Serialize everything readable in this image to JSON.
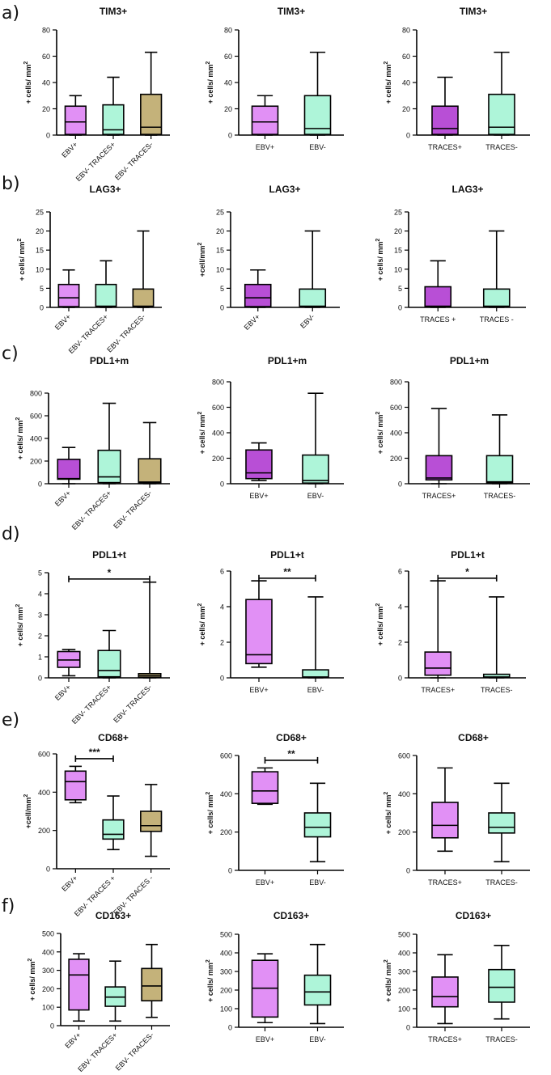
{
  "colors": {
    "purple": "#b84fd6",
    "light_purple": "#e190f5",
    "mint": "#aef5d9",
    "khaki": "#c4b27a",
    "line": "#000000"
  },
  "panels": [
    {
      "label": "a)",
      "charts": [
        {
          "type": "box",
          "title": "TIM3+",
          "ylabel": "+ cells/ mm²",
          "ylim": [
            0,
            80
          ],
          "yticks": [
            0,
            20,
            40,
            60,
            80
          ],
          "rotate": true,
          "categories": [
            "EBV+",
            "EBV- TRACES+",
            "EBV- TRACES-"
          ],
          "fills": [
            "light_purple",
            "mint",
            "khaki"
          ],
          "boxes": [
            {
              "min": 0,
              "q1": 0.5,
              "median": 10,
              "q3": 22,
              "max": 30
            },
            {
              "min": 0,
              "q1": 0.5,
              "median": 4,
              "q3": 23,
              "max": 44
            },
            {
              "min": 0,
              "q1": 0.5,
              "median": 6,
              "q3": 31,
              "max": 63
            }
          ]
        },
        {
          "type": "box",
          "title": "TIM3+",
          "ylabel": "+ cells/ mm²",
          "ylim": [
            0,
            80
          ],
          "yticks": [
            0,
            20,
            40,
            60,
            80
          ],
          "rotate": false,
          "categories": [
            "EBV+",
            "EBV-"
          ],
          "fills": [
            "light_purple",
            "mint"
          ],
          "boxes": [
            {
              "min": 0,
              "q1": 0.5,
              "median": 10,
              "q3": 22,
              "max": 30
            },
            {
              "min": 0,
              "q1": 0.5,
              "median": 5,
              "q3": 30,
              "max": 63
            }
          ]
        },
        {
          "type": "box",
          "title": "TIM3+",
          "ylabel": "+ cells/ mm²",
          "ylim": [
            0,
            80
          ],
          "yticks": [
            0,
            20,
            40,
            60,
            80
          ],
          "rotate": false,
          "categories": [
            "TRACES+",
            "TRACES-"
          ],
          "fills": [
            "purple",
            "mint"
          ],
          "boxes": [
            {
              "min": 0,
              "q1": 0.5,
              "median": 5,
              "q3": 22,
              "max": 44
            },
            {
              "min": 0,
              "q1": 0.5,
              "median": 6,
              "q3": 31,
              "max": 63
            }
          ]
        }
      ]
    },
    {
      "label": "b)",
      "charts": [
        {
          "type": "box",
          "title": "LAG3+",
          "ylabel": "+ cells/ mm²",
          "ylim": [
            0,
            25
          ],
          "yticks": [
            0,
            5,
            10,
            15,
            20,
            25
          ],
          "rotate": true,
          "categories": [
            "EBV+",
            "EBV- TRACES+",
            "EBV- TRACES-"
          ],
          "fills": [
            "light_purple",
            "mint",
            "khaki"
          ],
          "boxes": [
            {
              "min": 0,
              "q1": 0.2,
              "median": 2.5,
              "q3": 6,
              "max": 9.8
            },
            {
              "min": 0,
              "q1": 0.2,
              "median": 0.3,
              "q3": 6,
              "max": 12.2
            },
            {
              "min": 0,
              "q1": 0.2,
              "median": 0.3,
              "q3": 4.8,
              "max": 20
            }
          ]
        },
        {
          "type": "box",
          "title": "LAG3+",
          "ylabel": "+cell/mm²",
          "ylim": [
            0,
            25
          ],
          "yticks": [
            0,
            5,
            10,
            15,
            20,
            25
          ],
          "rotate": true,
          "categories": [
            "EBV+",
            "EBV-"
          ],
          "fills": [
            "purple",
            "mint"
          ],
          "boxes": [
            {
              "min": 0,
              "q1": 0.2,
              "median": 2.5,
              "q3": 6,
              "max": 9.8
            },
            {
              "min": 0,
              "q1": 0.2,
              "median": 0.3,
              "q3": 4.8,
              "max": 20
            }
          ]
        },
        {
          "type": "box",
          "title": "LAG3+",
          "ylabel": "+ cells/ mm²",
          "ylim": [
            0,
            25
          ],
          "yticks": [
            0,
            5,
            10,
            15,
            20,
            25
          ],
          "rotate": false,
          "categories": [
            "TRACES +",
            "TRACES -"
          ],
          "fills": [
            "purple",
            "mint"
          ],
          "boxes": [
            {
              "min": 0,
              "q1": 0.2,
              "median": 0.3,
              "q3": 5.4,
              "max": 12.2
            },
            {
              "min": 0,
              "q1": 0.2,
              "median": 0.3,
              "q3": 4.8,
              "max": 20
            }
          ]
        }
      ]
    },
    {
      "label": "c)",
      "charts": [
        {
          "type": "box",
          "title": "PDL1+m",
          "ylabel": "+ cells/ mm²",
          "ylim": [
            0,
            800
          ],
          "yticks": [
            0,
            200,
            400,
            600,
            800
          ],
          "rotate": true,
          "categories": [
            "EBV+",
            "EBV- TRACES+",
            "EBV- TRACES-"
          ],
          "fills": [
            "purple",
            "mint",
            "khaki"
          ],
          "boxes": [
            {
              "min": 0,
              "q1": 40,
              "median": 45,
              "q3": 215,
              "max": 320
            },
            {
              "min": 0,
              "q1": 10,
              "median": 60,
              "q3": 295,
              "max": 710
            },
            {
              "min": 0,
              "q1": 5,
              "median": 15,
              "q3": 220,
              "max": 540
            }
          ]
        },
        {
          "type": "box",
          "title": "PDL1+m",
          "ylabel": "+ cells/ mm²",
          "ylim": [
            0,
            800
          ],
          "yticks": [
            0,
            200,
            400,
            600,
            800
          ],
          "rotate": false,
          "categories": [
            "EBV+",
            "EBV-"
          ],
          "fills": [
            "purple",
            "mint"
          ],
          "boxes": [
            {
              "min": 25,
              "q1": 40,
              "median": 85,
              "q3": 265,
              "max": 320
            },
            {
              "min": 0,
              "q1": 5,
              "median": 25,
              "q3": 225,
              "max": 710
            }
          ]
        },
        {
          "type": "box",
          "title": "PDL1+m",
          "ylabel": "+ cells/ mm²",
          "ylim": [
            0,
            800
          ],
          "yticks": [
            0,
            200,
            400,
            600,
            800
          ],
          "rotate": false,
          "categories": [
            "TRACES+",
            "TRACES-"
          ],
          "fills": [
            "purple",
            "mint"
          ],
          "boxes": [
            {
              "min": 0,
              "q1": 30,
              "median": 45,
              "q3": 220,
              "max": 590
            },
            {
              "min": 0,
              "q1": 5,
              "median": 15,
              "q3": 220,
              "max": 540
            }
          ]
        }
      ]
    },
    {
      "label": "d)",
      "charts": [
        {
          "type": "box",
          "title": "PDL1+t",
          "ylabel": "+ cells/ mm²",
          "ylim": [
            0,
            5
          ],
          "yticks": [
            0,
            1,
            2,
            3,
            4,
            5
          ],
          "rotate": true,
          "categories": [
            "EBV+",
            "EBV- TRACES+",
            "EBV- TRACES-"
          ],
          "fills": [
            "light_purple",
            "mint",
            "khaki"
          ],
          "boxes": [
            {
              "min": 0.1,
              "q1": 0.5,
              "median": 0.85,
              "q3": 1.25,
              "max": 1.35
            },
            {
              "min": 0,
              "q1": 0.05,
              "median": 0.35,
              "q3": 1.3,
              "max": 2.25
            },
            {
              "min": 0,
              "q1": 0.02,
              "median": 0.1,
              "q3": 0.2,
              "max": 4.55
            }
          ],
          "sig": {
            "from": 0,
            "to": 2,
            "y": 4.7,
            "label": "*"
          }
        },
        {
          "type": "box",
          "title": "PDL1+t",
          "ylabel": "+ cells/ mm²",
          "ylim": [
            0,
            6
          ],
          "yticks": [
            0,
            2,
            4,
            6
          ],
          "rotate": false,
          "categories": [
            "EBV+",
            "EBV-"
          ],
          "fills": [
            "light_purple",
            "mint"
          ],
          "boxes": [
            {
              "min": 0.6,
              "q1": 0.8,
              "median": 1.3,
              "q3": 4.4,
              "max": 5.45
            },
            {
              "min": 0,
              "q1": 0.02,
              "median": 0.05,
              "q3": 0.45,
              "max": 4.55
            }
          ],
          "sig": {
            "from": 0,
            "to": 1,
            "y": 5.6,
            "label": "**"
          }
        },
        {
          "type": "box",
          "title": "PDL1+t",
          "ylabel": "+ cells/ mm²",
          "ylim": [
            0,
            6
          ],
          "yticks": [
            0,
            2,
            4,
            6
          ],
          "rotate": false,
          "categories": [
            "TRACES+",
            "TRACES-"
          ],
          "fills": [
            "light_purple",
            "mint"
          ],
          "boxes": [
            {
              "min": 0,
              "q1": 0.15,
              "median": 0.55,
              "q3": 1.45,
              "max": 5.45
            },
            {
              "min": 0,
              "q1": 0.02,
              "median": 0.05,
              "q3": 0.2,
              "max": 4.55
            }
          ],
          "sig": {
            "from": 0,
            "to": 1,
            "y": 5.6,
            "label": "*"
          }
        }
      ]
    },
    {
      "label": "e)",
      "charts": [
        {
          "type": "box",
          "title": "CD68+",
          "ylabel": "+cell/mm²",
          "ylim": [
            0,
            600
          ],
          "yticks": [
            0,
            200,
            400,
            600
          ],
          "rotate": true,
          "categories": [
            "EBV+",
            "EBV- TRACES +",
            "EBV- TRACES -"
          ],
          "fills": [
            "light_purple",
            "mint",
            "khaki"
          ],
          "boxes": [
            {
              "min": 345,
              "q1": 360,
              "median": 455,
              "q3": 510,
              "max": 535
            },
            {
              "min": 100,
              "q1": 155,
              "median": 180,
              "q3": 255,
              "max": 380
            },
            {
              "min": 65,
              "q1": 195,
              "median": 225,
              "q3": 300,
              "max": 440
            }
          ],
          "sig": {
            "from": 0,
            "to": 1,
            "y": 575,
            "label": "***"
          }
        },
        {
          "type": "box",
          "title": "CD68+",
          "ylabel": "+ cells/ mm²",
          "ylim": [
            0,
            600
          ],
          "yticks": [
            0,
            200,
            400,
            600
          ],
          "rotate": false,
          "categories": [
            "EBV+",
            "EBV-"
          ],
          "fills": [
            "light_purple",
            "mint"
          ],
          "boxes": [
            {
              "min": 345,
              "q1": 350,
              "median": 415,
              "q3": 515,
              "max": 535
            },
            {
              "min": 45,
              "q1": 175,
              "median": 225,
              "q3": 300,
              "max": 455
            }
          ],
          "sig": {
            "from": 0,
            "to": 1,
            "y": 575,
            "label": "**"
          }
        },
        {
          "type": "box",
          "title": "CD68+",
          "ylabel": "+ cells/ mm²",
          "ylim": [
            0,
            600
          ],
          "yticks": [
            0,
            200,
            400,
            600
          ],
          "rotate": false,
          "categories": [
            "TRACES+",
            "TRACES-"
          ],
          "fills": [
            "light_purple",
            "mint"
          ],
          "boxes": [
            {
              "min": 100,
              "q1": 170,
              "median": 235,
              "q3": 355,
              "max": 535
            },
            {
              "min": 45,
              "q1": 195,
              "median": 225,
              "q3": 300,
              "max": 455
            }
          ]
        }
      ]
    },
    {
      "label": "f)",
      "charts": [
        {
          "type": "box",
          "title": "CD163+",
          "ylabel": "+ cells/ mm²",
          "ylim": [
            0,
            500
          ],
          "yticks": [
            0,
            100,
            200,
            300,
            400,
            500
          ],
          "rotate": true,
          "categories": [
            "EBV+",
            "EBV- TRACES+",
            "EBV- TRACES-"
          ],
          "fills": [
            "light_purple",
            "mint",
            "khaki"
          ],
          "boxes": [
            {
              "min": 25,
              "q1": 85,
              "median": 275,
              "q3": 360,
              "max": 390
            },
            {
              "min": 25,
              "q1": 105,
              "median": 155,
              "q3": 210,
              "max": 350
            },
            {
              "min": 45,
              "q1": 135,
              "median": 215,
              "q3": 310,
              "max": 440
            }
          ]
        },
        {
          "type": "box",
          "title": "CD163+",
          "ylabel": "+ cells/ mm²",
          "ylim": [
            0,
            500
          ],
          "yticks": [
            0,
            100,
            200,
            300,
            400,
            500
          ],
          "rotate": false,
          "categories": [
            "EBV+",
            "EBV-"
          ],
          "fills": [
            "light_purple",
            "mint"
          ],
          "boxes": [
            {
              "min": 25,
              "q1": 55,
              "median": 210,
              "q3": 360,
              "max": 395
            },
            {
              "min": 20,
              "q1": 120,
              "median": 190,
              "q3": 280,
              "max": 445
            }
          ]
        },
        {
          "type": "box",
          "title": "CD163+",
          "ylabel": "+ cells/ mm²",
          "ylim": [
            0,
            500
          ],
          "yticks": [
            0,
            100,
            200,
            300,
            400,
            500
          ],
          "rotate": false,
          "categories": [
            "TRACES+",
            "TRACES-"
          ],
          "fills": [
            "light_purple",
            "mint"
          ],
          "boxes": [
            {
              "min": 20,
              "q1": 110,
              "median": 165,
              "q3": 270,
              "max": 390
            },
            {
              "min": 45,
              "q1": 135,
              "median": 215,
              "q3": 310,
              "max": 440
            }
          ]
        }
      ]
    }
  ]
}
